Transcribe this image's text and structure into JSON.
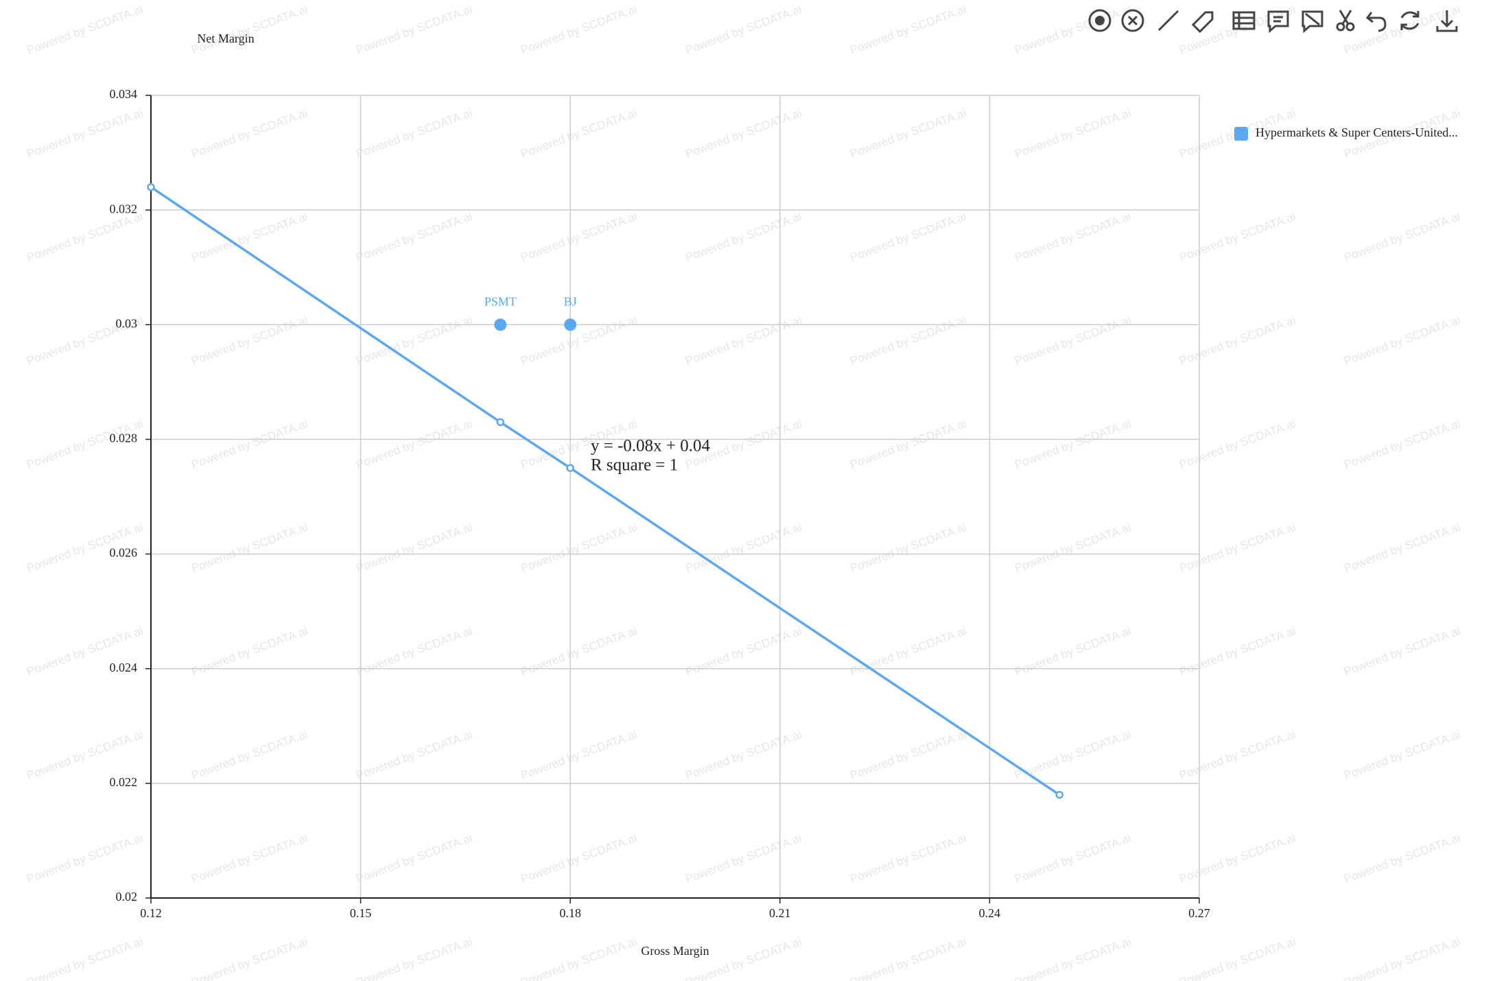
{
  "chart_data": {
    "type": "scatter",
    "y_label": "Net Margin",
    "x_label": "Gross Margin",
    "series": [
      {
        "name": "Hypermarkets & Super Centers-United...",
        "color": "#5aa9f0",
        "x": [
          0.17,
          0.18
        ],
        "values": [
          0.03,
          0.03
        ],
        "labels": [
          "PSMT",
          "BJ"
        ]
      }
    ],
    "trendline": {
      "x": [
        0.12,
        0.17,
        0.18,
        0.25
      ],
      "values": [
        0.0324,
        0.0283,
        0.0275,
        0.0218
      ]
    },
    "annotations": [
      "y = -0.08x + 0.04",
      "R square = 1"
    ],
    "xlim": [
      0.12,
      0.27
    ],
    "xticks": [
      0.12,
      0.15,
      0.18,
      0.21,
      0.24,
      0.27
    ],
    "ylim": [
      0.02,
      0.034
    ],
    "yticks": [
      0.02,
      0.022,
      0.024,
      0.026,
      0.028,
      0.03,
      0.032,
      0.034
    ],
    "grid": true,
    "legend": "right",
    "watermark": "Powered by SCDATA.ai"
  }
}
